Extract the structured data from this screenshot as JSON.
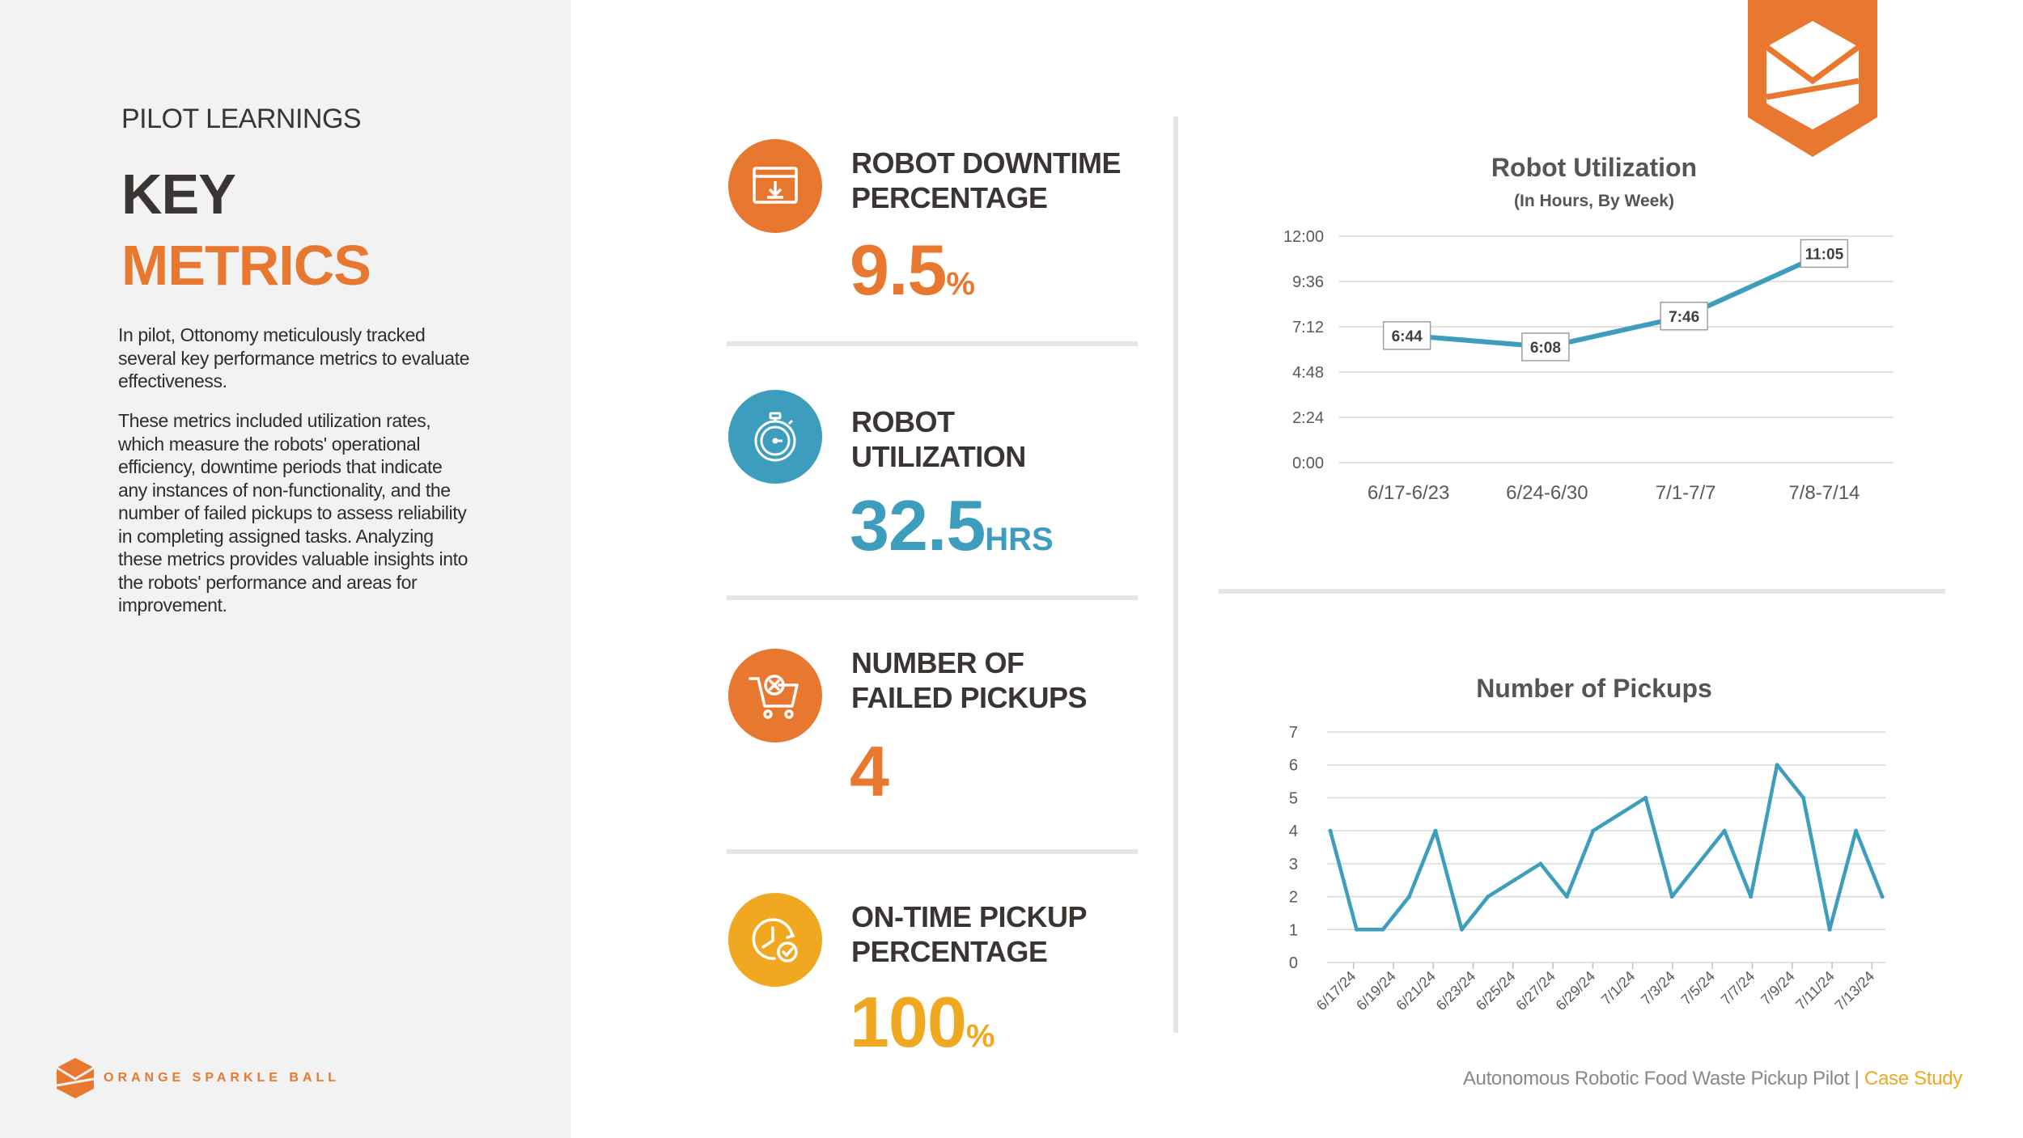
{
  "sidebar": {
    "section_label": "PILOT LEARNINGS",
    "title_line1": "KEY",
    "title_line2": "METRICS",
    "paragraph1": "In pilot, Ottonomy meticulously tracked several key performance metrics to evaluate effectiveness.",
    "paragraph2": "These metrics included utilization rates, which measure the robots' operational efficiency, downtime periods that indicate any instances of non-functionality, and the number of failed pickups to assess reliability in completing assigned tasks. Analyzing these metrics provides valuable insights into the robots' performance and areas for improvement.",
    "brand": "ORANGE SPARKLE BALL"
  },
  "metrics": [
    {
      "label_line1": "ROBOT DOWNTIME",
      "label_line2": "PERCENTAGE",
      "value": "9.5",
      "unit": "%",
      "icon": "browser-download-icon",
      "color": "#e87830"
    },
    {
      "label_line1": "ROBOT",
      "label_line2": "UTILIZATION",
      "value": "32.5",
      "unit": "HRS",
      "icon": "stopwatch-icon",
      "color": "#3d9dbd"
    },
    {
      "label_line1": "NUMBER OF",
      "label_line2": "FAILED PICKUPS",
      "value": "4",
      "unit": "",
      "icon": "cart-cancel-icon",
      "color": "#e87830"
    },
    {
      "label_line1": "ON-TIME PICKUP",
      "label_line2": "PERCENTAGE",
      "value": "100",
      "unit": "%",
      "icon": "clock-check-icon",
      "color": "#f0a820"
    }
  ],
  "footer": {
    "text": "Autonomous Robotic Food Waste Pickup Pilot |",
    "accent": "Case Study"
  },
  "colors": {
    "orange": "#e87830",
    "blue": "#3d9dbd",
    "gold": "#f0a820",
    "line": "#3d9dbd"
  },
  "chart_data": [
    {
      "type": "line",
      "title": "Robot Utilization",
      "subtitle": "(In Hours, By Week)",
      "categories": [
        "6/17-6/23",
        "6/24-6/30",
        "7/1-7/7",
        "7/8-7/14"
      ],
      "values_minutes": [
        404,
        368,
        466,
        665
      ],
      "data_labels": [
        "6:44",
        "6:08",
        "7:46",
        "11:05"
      ],
      "y_ticks": [
        "0:00",
        "2:24",
        "4:48",
        "7:12",
        "9:36",
        "12:00"
      ],
      "ylim_minutes": [
        0,
        720
      ],
      "xlabel": "",
      "ylabel": "",
      "grid": true,
      "legend": "none"
    },
    {
      "type": "line",
      "title": "Number of Pickups",
      "x": [
        "6/17/24",
        "6/18/24",
        "6/19/24",
        "6/20/24",
        "6/21/24",
        "6/23/24",
        "6/24/24",
        "6/25/24",
        "6/26/24",
        "6/27/24",
        "6/28/24",
        "6/29/24",
        "7/1/24",
        "7/2/24",
        "7/3/24",
        "7/5/24",
        "7/7/24",
        "7/8/24",
        "7/9/24",
        "7/11/24",
        "7/12/24",
        "7/13/24"
      ],
      "values": [
        4,
        1,
        1,
        2,
        4,
        1,
        2,
        2.5,
        3,
        2,
        4,
        4.5,
        5,
        2,
        3,
        4,
        2,
        6,
        5,
        1,
        4,
        2
      ],
      "x_tick_labels": [
        "6/17/24",
        "6/19/24",
        "6/21/24",
        "6/23/24",
        "6/25/24",
        "6/27/24",
        "6/29/24",
        "7/1/24",
        "7/3/24",
        "7/5/24",
        "7/7/24",
        "7/9/24",
        "7/11/24",
        "7/13/24"
      ],
      "y_ticks": [
        0,
        1,
        2,
        3,
        4,
        5,
        6,
        7
      ],
      "ylim": [
        0,
        7
      ],
      "xlabel": "",
      "ylabel": "",
      "grid": true,
      "legend": "none"
    }
  ]
}
